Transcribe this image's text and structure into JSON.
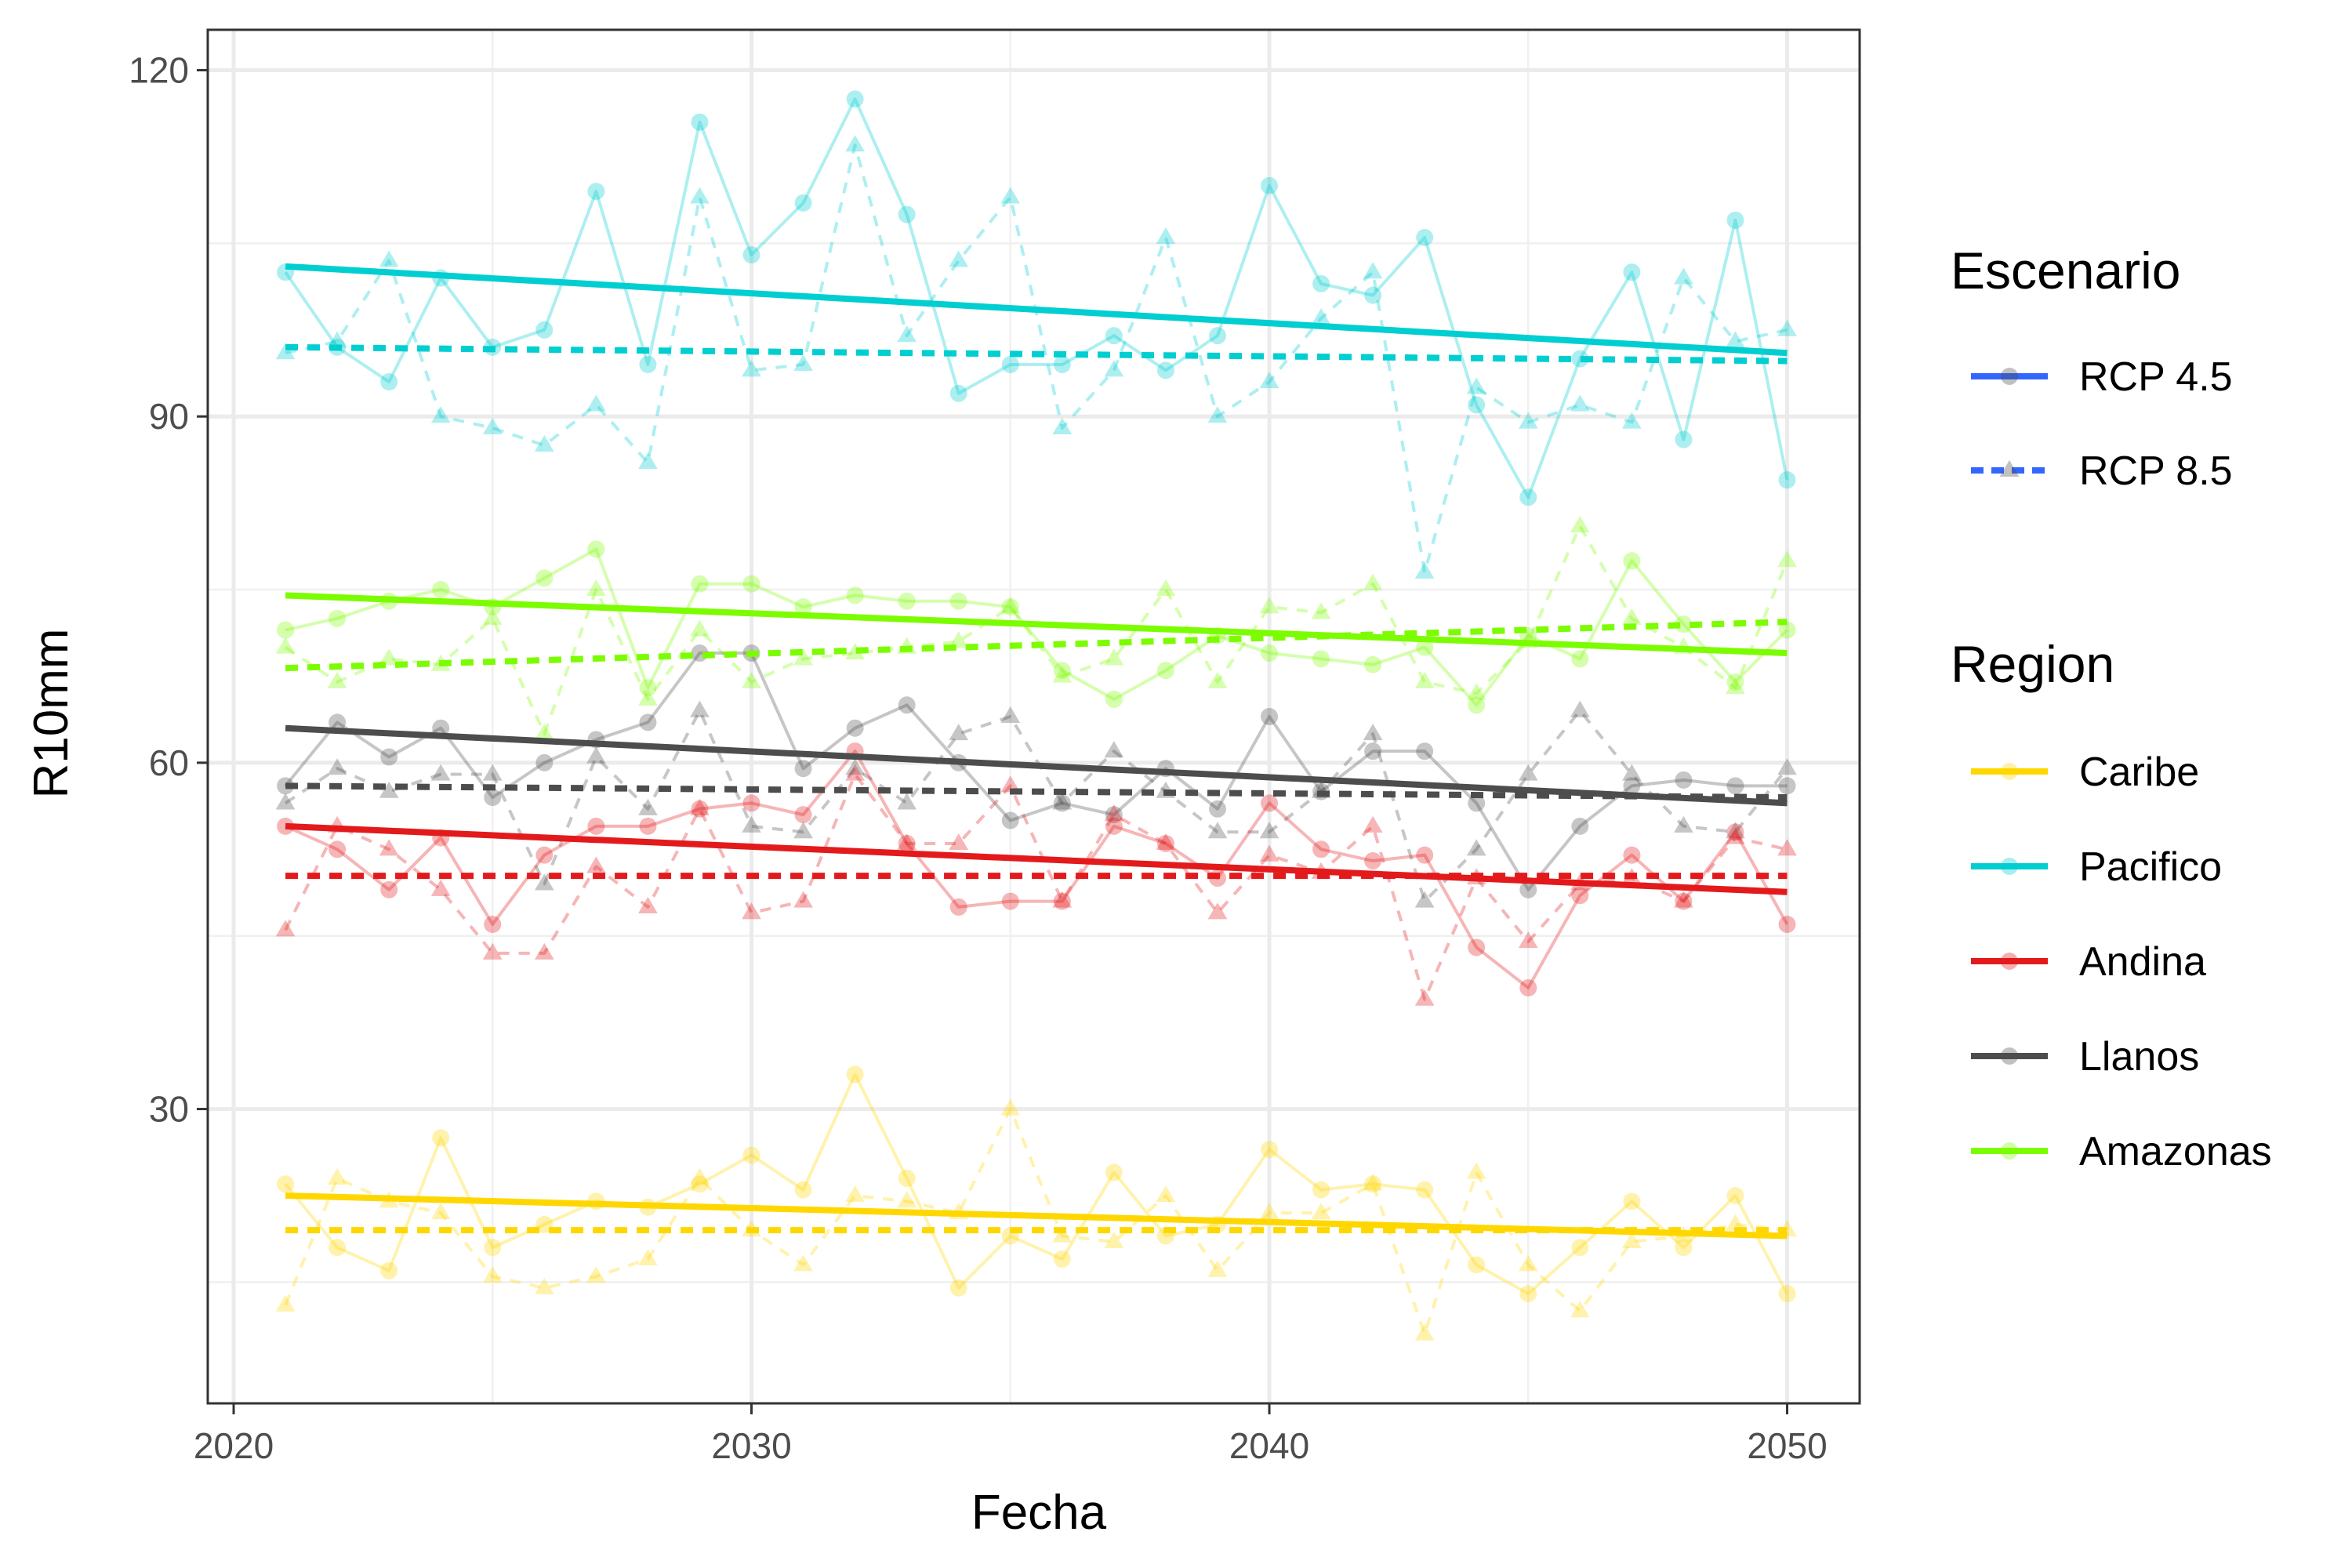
{
  "chart_data": {
    "type": "line",
    "xlabel": "Fecha",
    "ylabel": "R10mm",
    "xlim": [
      2019.5,
      2051.4
    ],
    "ylim": [
      4.5,
      123.5
    ],
    "xticks": [
      "2020",
      "2030",
      "2040",
      "2050"
    ],
    "yticks": [
      "30",
      "60",
      "90",
      "120"
    ],
    "grid": true,
    "legend_placement": "right",
    "x": [
      2021,
      2022,
      2023,
      2024,
      2025,
      2026,
      2027,
      2028,
      2029,
      2030,
      2031,
      2032,
      2033,
      2034,
      2035,
      2036,
      2037,
      2038,
      2039,
      2040,
      2041,
      2042,
      2043,
      2044,
      2045,
      2046,
      2047,
      2048,
      2049,
      2050
    ],
    "scenario_legend": {
      "title": "Escenario",
      "items": [
        {
          "label": "RCP 4.5",
          "linetype": "solid",
          "marker": "circle"
        },
        {
          "label": "RCP 8.5",
          "linetype": "dashed",
          "marker": "triangle"
        }
      ],
      "swatch_color": "#3366ff"
    },
    "region_legend": {
      "title": "Region",
      "items": [
        {
          "label": "Caribe",
          "color": "#ffd700"
        },
        {
          "label": "Pacifico",
          "color": "#00ced1"
        },
        {
          "label": "Andina",
          "color": "#e31a1c"
        },
        {
          "label": "Llanos",
          "color": "#4d4d4d"
        },
        {
          "label": "Amazonas",
          "color": "#7cfc00"
        }
      ]
    },
    "series": [
      {
        "region": "Pacifico",
        "scenario": "RCP 4.5",
        "color": "#00ced1",
        "values": [
          102.5,
          96,
          93,
          102,
          96,
          97.5,
          109.5,
          94.5,
          115.5,
          104,
          108.5,
          117.5,
          107.5,
          92,
          94.5,
          94.5,
          97,
          94,
          97,
          110,
          101.5,
          100.5,
          105.5,
          91,
          83,
          95,
          102.5,
          88,
          107,
          84.5
        ],
        "trend": [
          103,
          95.5
        ]
      },
      {
        "region": "Pacifico",
        "scenario": "RCP 8.5",
        "color": "#00ced1",
        "values": [
          95.5,
          96.5,
          103.5,
          90,
          89,
          87.5,
          91,
          86,
          109,
          94,
          94.5,
          113.5,
          97,
          103.5,
          109,
          89,
          94,
          105.5,
          90,
          93,
          98.5,
          102.5,
          76.5,
          92.5,
          89.5,
          91,
          89.5,
          102,
          96.5,
          97.5
        ],
        "trend": [
          96,
          94.8
        ]
      },
      {
        "region": "Amazonas",
        "scenario": "RCP 4.5",
        "color": "#7cfc00",
        "values": [
          71.5,
          72.5,
          74,
          75,
          73.5,
          76,
          78.5,
          66.5,
          75.5,
          75.5,
          73.5,
          74.5,
          74,
          74,
          73.5,
          68,
          65.5,
          68,
          71,
          69.5,
          69,
          68.5,
          70,
          65,
          71,
          69,
          77.5,
          72,
          67,
          71.5
        ],
        "trend": [
          74.5,
          69.5
        ]
      },
      {
        "region": "Amazonas",
        "scenario": "RCP 8.5",
        "color": "#7cfc00",
        "values": [
          70,
          67,
          69,
          68.5,
          72.5,
          62.5,
          75,
          65.5,
          71.5,
          67,
          69,
          69.5,
          70,
          70.5,
          73.5,
          67.5,
          69,
          75,
          67,
          73.5,
          73,
          75.5,
          67,
          66,
          70.5,
          80.5,
          72.5,
          70,
          66.5,
          77.5
        ],
        "trend": [
          68.2,
          72.2
        ]
      },
      {
        "region": "Llanos",
        "scenario": "RCP 4.5",
        "color": "#4d4d4d",
        "values": [
          58,
          63.5,
          60.5,
          63,
          57,
          60,
          62,
          63.5,
          69.5,
          69.5,
          59.5,
          63,
          65,
          60,
          55,
          56.5,
          55.5,
          59.5,
          56,
          64,
          57.5,
          61,
          61,
          56.5,
          49,
          54.5,
          58,
          58.5,
          58,
          58
        ],
        "trend": [
          63,
          56.5
        ]
      },
      {
        "region": "Llanos",
        "scenario": "RCP 8.5",
        "color": "#4d4d4d",
        "values": [
          56.5,
          59.5,
          57.5,
          59,
          59,
          49.5,
          60.5,
          56,
          64.5,
          54.5,
          54,
          59.5,
          56.5,
          62.5,
          64,
          56.5,
          61,
          57.5,
          54,
          54,
          57.5,
          62.5,
          48,
          52.5,
          59,
          64.5,
          59,
          54.5,
          54,
          59.5
        ],
        "trend": [
          58,
          57
        ]
      },
      {
        "region": "Andina",
        "scenario": "RCP 4.5",
        "color": "#e31a1c",
        "values": [
          54.5,
          52.5,
          49,
          53.5,
          46,
          52,
          54.5,
          54.5,
          56,
          56.5,
          55.5,
          61,
          53,
          47.5,
          48,
          48,
          54.5,
          53,
          50,
          56.5,
          52.5,
          51.5,
          52,
          44,
          40.5,
          48.5,
          52,
          48,
          54,
          46
        ],
        "trend": [
          54.5,
          48.8
        ]
      },
      {
        "region": "Andina",
        "scenario": "RCP 8.5",
        "color": "#e31a1c",
        "values": [
          45.5,
          54.5,
          52.5,
          49,
          43.5,
          43.5,
          51,
          47.5,
          56,
          47,
          48,
          59,
          53,
          53,
          58,
          48,
          55.5,
          53,
          47,
          52,
          50.5,
          54.5,
          39.5,
          50,
          44.5,
          49.5,
          50,
          48,
          53.5,
          52.5
        ],
        "trend": [
          50.2,
          50.2
        ]
      },
      {
        "region": "Caribe",
        "scenario": "RCP 4.5",
        "color": "#ffd700",
        "values": [
          23.5,
          18,
          16,
          27.5,
          18,
          20,
          22,
          21.5,
          23.5,
          26,
          23,
          33,
          24,
          14.5,
          19,
          17,
          24.5,
          19,
          20,
          26.5,
          23,
          23.5,
          23,
          16.5,
          14,
          18,
          22,
          18,
          22.5,
          14
        ],
        "trend": [
          22.5,
          19
        ]
      },
      {
        "region": "Caribe",
        "scenario": "RCP 8.5",
        "color": "#ffd700",
        "values": [
          13,
          24,
          22,
          21,
          15.5,
          14.5,
          15.5,
          17,
          24,
          19.5,
          16.5,
          22.5,
          22,
          21,
          30,
          19,
          18.5,
          22.5,
          16,
          21,
          21,
          23.5,
          10.5,
          24.5,
          16.5,
          12.5,
          18.5,
          19,
          20,
          19.5
        ],
        "trend": [
          19.5,
          19.5
        ]
      }
    ]
  }
}
